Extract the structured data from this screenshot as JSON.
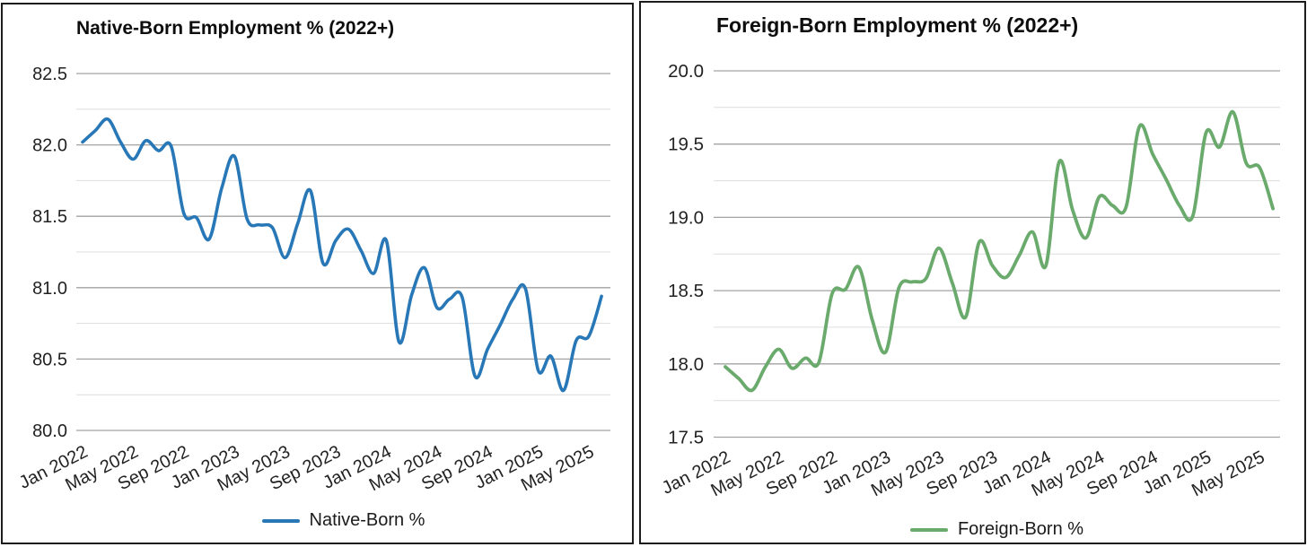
{
  "chart_data": [
    {
      "type": "line",
      "title": "Native-Born Employment % (2022+)",
      "xlabel": "",
      "ylabel": "",
      "grid": true,
      "legend_position": "bottom",
      "ylim": [
        80.0,
        82.5
      ],
      "y_ticks": [
        "82.5",
        "82.0",
        "81.5",
        "81.0",
        "80.5",
        "80.0"
      ],
      "y_minor_step": 0.25,
      "x_tick_labels": [
        "Jan 2022",
        "May 2022",
        "Sep 2022",
        "Jan 2023",
        "May 2023",
        "Sep 2023",
        "Jan 2024",
        "May 2024",
        "Sep 2024",
        "Jan 2025",
        "May 2025"
      ],
      "x": [
        "Jan 2022",
        "Feb 2022",
        "Mar 2022",
        "Apr 2022",
        "May 2022",
        "Jun 2022",
        "Jul 2022",
        "Aug 2022",
        "Sep 2022",
        "Oct 2022",
        "Nov 2022",
        "Dec 2022",
        "Jan 2023",
        "Feb 2023",
        "Mar 2023",
        "Apr 2023",
        "May 2023",
        "Jun 2023",
        "Jul 2023",
        "Aug 2023",
        "Sep 2023",
        "Oct 2023",
        "Nov 2023",
        "Dec 2023",
        "Jan 2024",
        "Feb 2024",
        "Mar 2024",
        "Apr 2024",
        "May 2024",
        "Jun 2024",
        "Jul 2024",
        "Aug 2024",
        "Sep 2024",
        "Oct 2024",
        "Nov 2024",
        "Dec 2024",
        "Jan 2025",
        "Feb 2025",
        "Mar 2025",
        "Apr 2025",
        "May 2025",
        "Jun 2025"
      ],
      "series": [
        {
          "name": "Native-Born %",
          "color": "#2878b8",
          "values": [
            82.02,
            82.1,
            82.18,
            82.02,
            81.9,
            82.03,
            81.96,
            81.99,
            81.52,
            81.49,
            81.34,
            81.7,
            81.92,
            81.48,
            81.44,
            81.42,
            81.21,
            81.45,
            81.68,
            81.17,
            81.33,
            81.41,
            81.26,
            81.1,
            81.33,
            80.62,
            80.95,
            81.14,
            80.86,
            80.92,
            80.93,
            80.38,
            80.57,
            80.74,
            80.92,
            80.99,
            80.42,
            80.52,
            80.28,
            80.63,
            80.66,
            80.94
          ]
        }
      ]
    },
    {
      "type": "line",
      "title": "Foreign-Born Employment % (2022+)",
      "xlabel": "",
      "ylabel": "",
      "grid": true,
      "legend_position": "bottom",
      "ylim": [
        17.5,
        20.0
      ],
      "y_ticks": [
        "20.0",
        "19.5",
        "19.0",
        "18.5",
        "18.0",
        "17.5"
      ],
      "y_minor_step": 0.25,
      "x_tick_labels": [
        "Jan 2022",
        "May 2022",
        "Sep 2022",
        "Jan 2023",
        "May 2023",
        "Sep 2023",
        "Jan 2024",
        "May 2024",
        "Sep 2024",
        "Jan 2025",
        "May 2025"
      ],
      "x": [
        "Jan 2022",
        "Feb 2022",
        "Mar 2022",
        "Apr 2022",
        "May 2022",
        "Jun 2022",
        "Jul 2022",
        "Aug 2022",
        "Sep 2022",
        "Oct 2022",
        "Nov 2022",
        "Dec 2022",
        "Jan 2023",
        "Feb 2023",
        "Mar 2023",
        "Apr 2023",
        "May 2023",
        "Jun 2023",
        "Jul 2023",
        "Aug 2023",
        "Sep 2023",
        "Oct 2023",
        "Nov 2023",
        "Dec 2023",
        "Jan 2024",
        "Feb 2024",
        "Mar 2024",
        "Apr 2024",
        "May 2024",
        "Jun 2024",
        "Jul 2024",
        "Aug 2024",
        "Sep 2024",
        "Oct 2024",
        "Nov 2024",
        "Dec 2024",
        "Jan 2025",
        "Feb 2025",
        "Mar 2025",
        "Apr 2025",
        "May 2025",
        "Jun 2025"
      ],
      "series": [
        {
          "name": "Foreign-Born %",
          "color": "#6aaa6c",
          "values": [
            17.98,
            17.9,
            17.82,
            17.98,
            18.1,
            17.97,
            18.04,
            18.01,
            18.48,
            18.51,
            18.66,
            18.3,
            18.08,
            18.52,
            18.56,
            18.58,
            18.79,
            18.55,
            18.32,
            18.83,
            18.67,
            18.59,
            18.74,
            18.9,
            18.67,
            19.38,
            19.05,
            18.86,
            19.14,
            19.08,
            19.07,
            19.62,
            19.43,
            19.26,
            19.08,
            19.01,
            19.58,
            19.48,
            19.72,
            19.37,
            19.34,
            19.06
          ]
        }
      ]
    }
  ],
  "style": {
    "major_grid_color": "#a3a3a3",
    "minor_grid_color": "#dddddd",
    "tick_label_color": "#222222",
    "border_color": "#1c1c1c"
  }
}
